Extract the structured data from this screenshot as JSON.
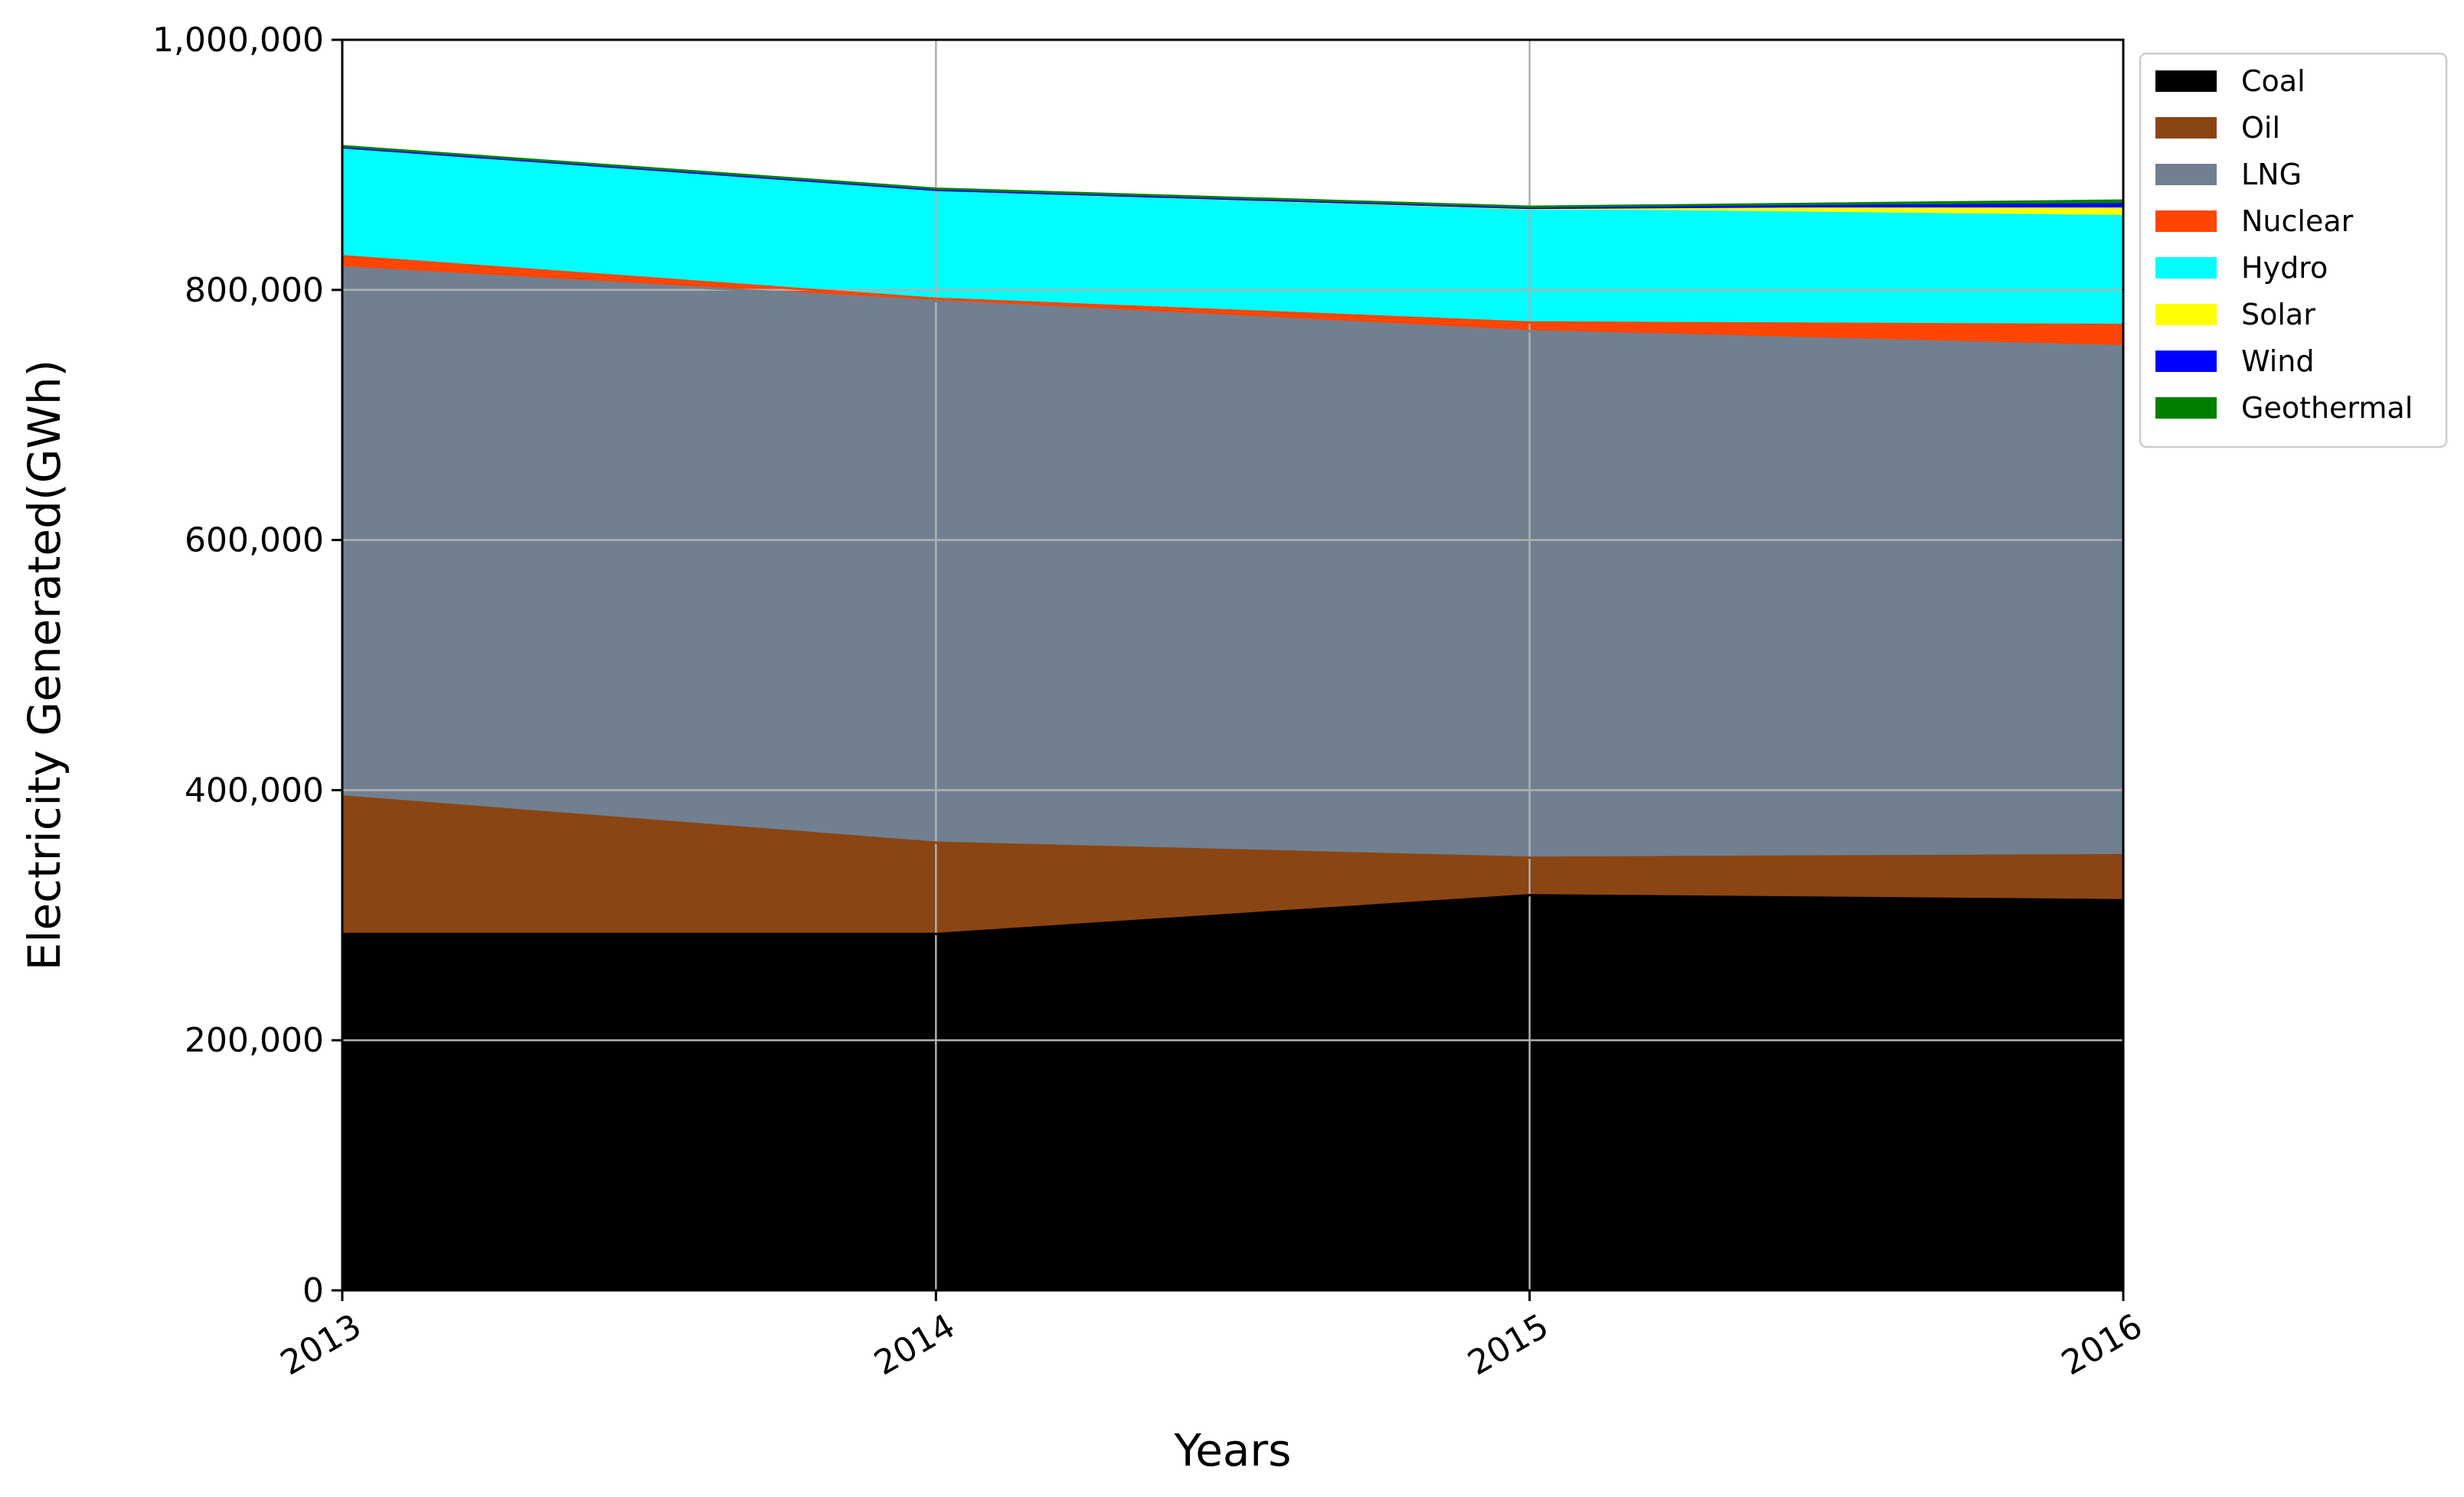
{
  "chart_data": {
    "type": "area",
    "stacked": true,
    "x": [
      "2013",
      "2014",
      "2015",
      "2016"
    ],
    "xlabel": "Years",
    "ylabel": "Electricity Generated(GWh)",
    "ylim": [
      0,
      1000000
    ],
    "yticks": [
      0,
      200000,
      400000,
      600000,
      800000,
      1000000
    ],
    "ytick_labels": [
      "0",
      "200,000",
      "400,000",
      "600,000",
      "800,000",
      "1,000,000"
    ],
    "grid": true,
    "legend_position": "outside-top-right",
    "series": [
      {
        "name": "Coal",
        "color": "#000000",
        "values": [
          285000,
          285000,
          316000,
          312000
        ]
      },
      {
        "name": "Oil",
        "color": "#8b4513",
        "values": [
          110000,
          73000,
          30000,
          36000
        ]
      },
      {
        "name": "LNG",
        "color": "#708090",
        "values": [
          423000,
          433000,
          421000,
          407000
        ]
      },
      {
        "name": "Nuclear",
        "color": "#ff4500",
        "values": [
          9000,
          2000,
          7000,
          17000
        ]
      },
      {
        "name": "Hydro",
        "color": "#00ffff",
        "values": [
          87000,
          87000,
          90000,
          87000
        ]
      },
      {
        "name": "Solar",
        "color": "#ffff00",
        "values": [
          0,
          0,
          1000,
          6000
        ]
      },
      {
        "name": "Wind",
        "color": "#0000ff",
        "values": [
          0,
          0,
          500,
          3500
        ]
      },
      {
        "name": "Geothermal",
        "color": "#008000",
        "values": [
          1000,
          1000,
          1000,
          3000
        ]
      }
    ]
  }
}
